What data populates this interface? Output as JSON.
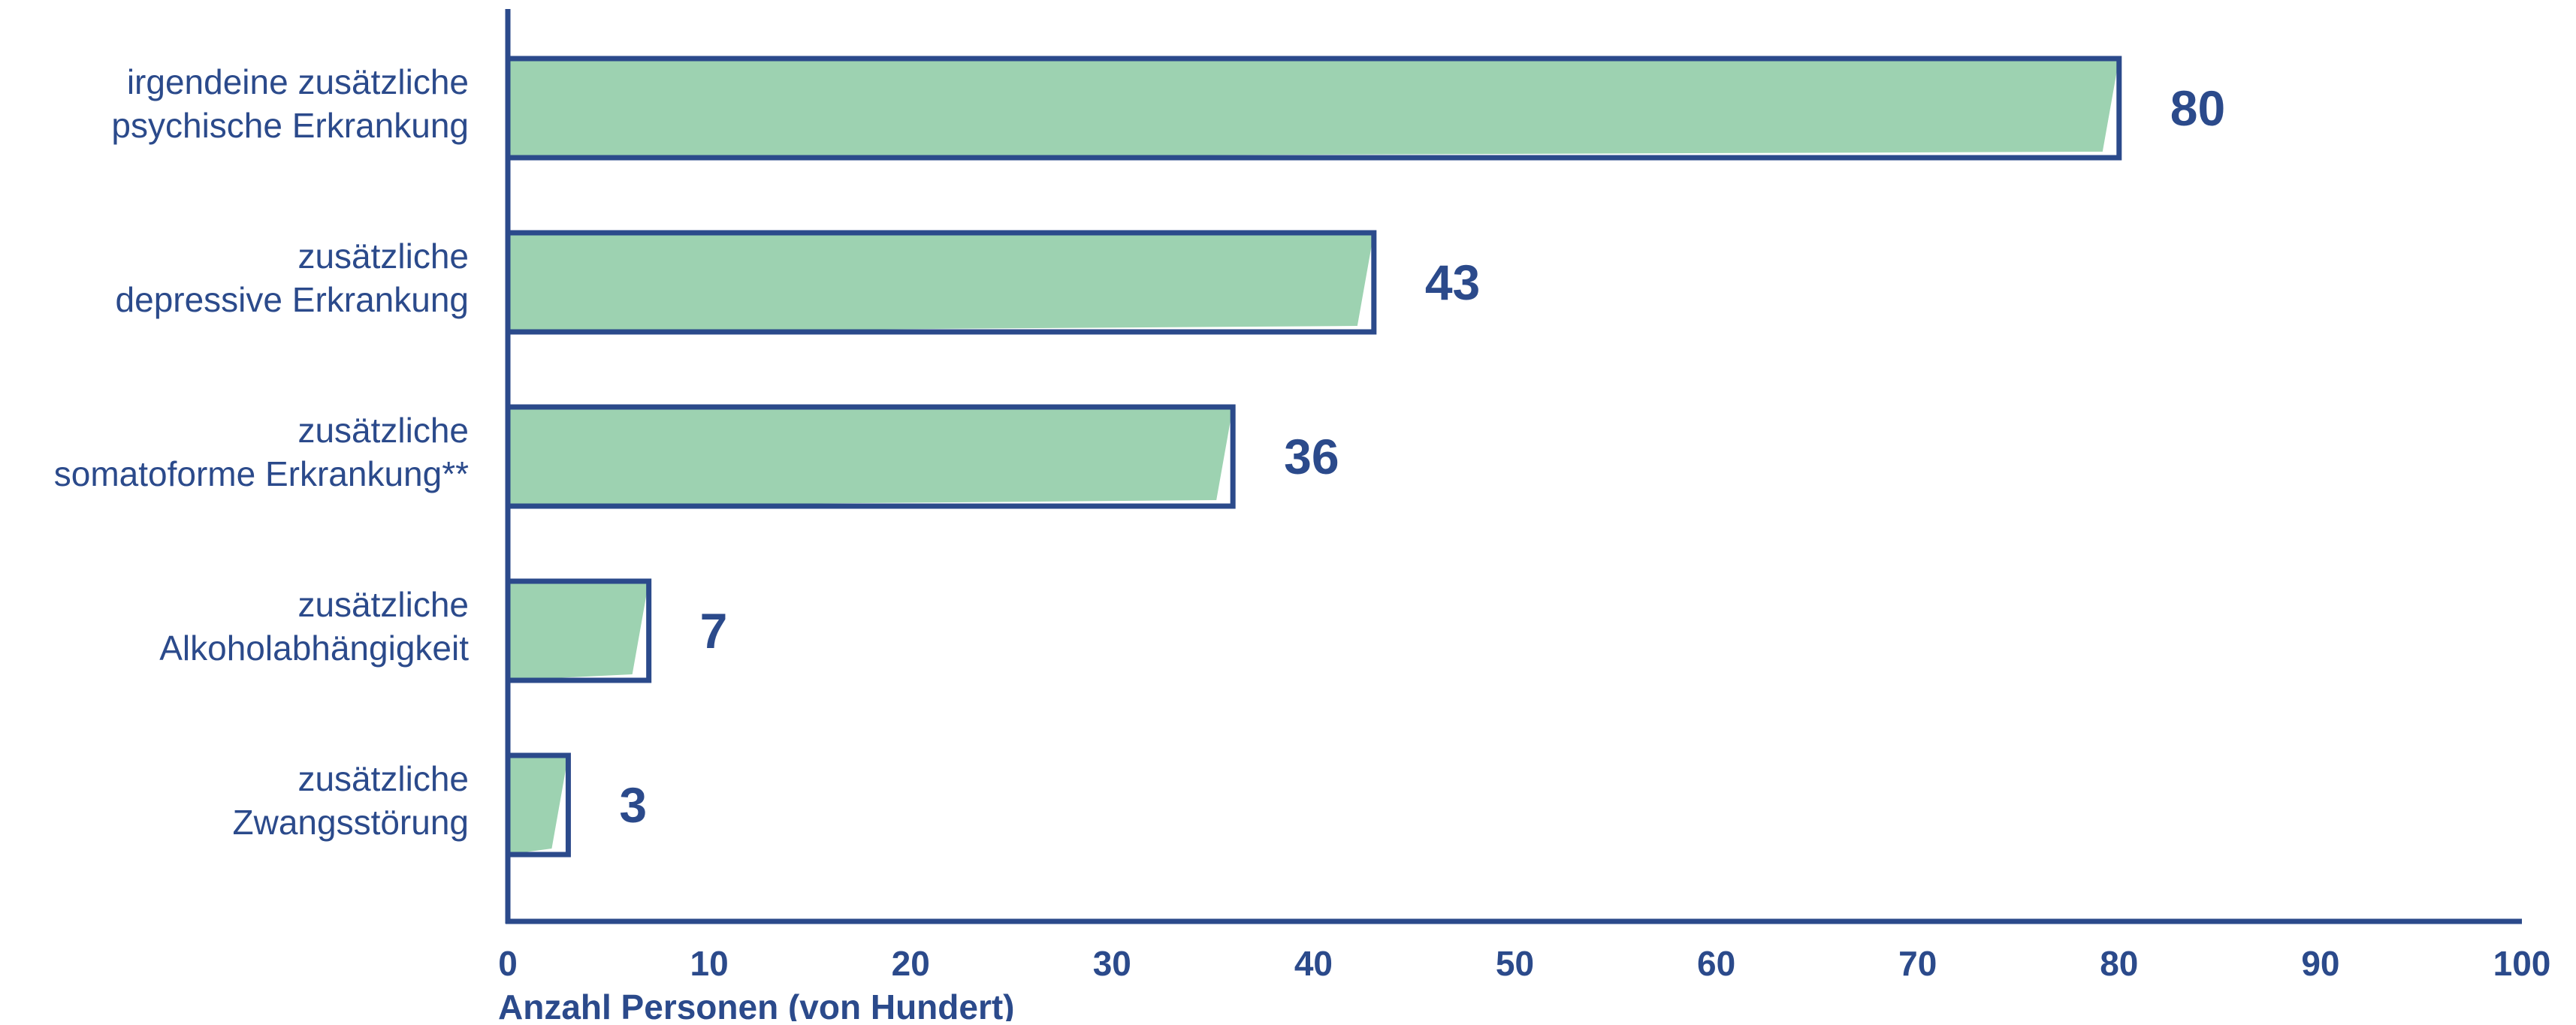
{
  "chart_data": {
    "type": "bar",
    "orientation": "horizontal",
    "categories": [
      [
        "irgendeine zusätzliche",
        "psychische Erkrankung"
      ],
      [
        "zusätzliche",
        "depressive Erkrankung"
      ],
      [
        "zusätzliche",
        "somatoforme Erkrankung**"
      ],
      [
        "zusätzliche",
        "Alkoholabhängigkeit"
      ],
      [
        "zusätzliche",
        "Zwangsstörung"
      ]
    ],
    "values": [
      80,
      43,
      36,
      7,
      3
    ],
    "value_labels": [
      "80",
      "43",
      "36",
      "7",
      "3"
    ],
    "title": "",
    "xlabel": "Anzahl Personen (von Hundert)",
    "ylabel": "",
    "xlim": [
      0,
      100
    ],
    "xticks": [
      0,
      10,
      20,
      30,
      40,
      50,
      60,
      70,
      80,
      90,
      100
    ],
    "xtick_labels": [
      "0",
      "10",
      "20",
      "30",
      "40",
      "50",
      "60",
      "70",
      "80",
      "90",
      "100"
    ],
    "grid": false,
    "legend": "none"
  },
  "colors": {
    "text": "#2b4a8b",
    "axis": "#2b4a8b",
    "bar_outline": "#2b4a8b",
    "bar_fill": "#9dd2b1",
    "background": "#ffffff"
  }
}
